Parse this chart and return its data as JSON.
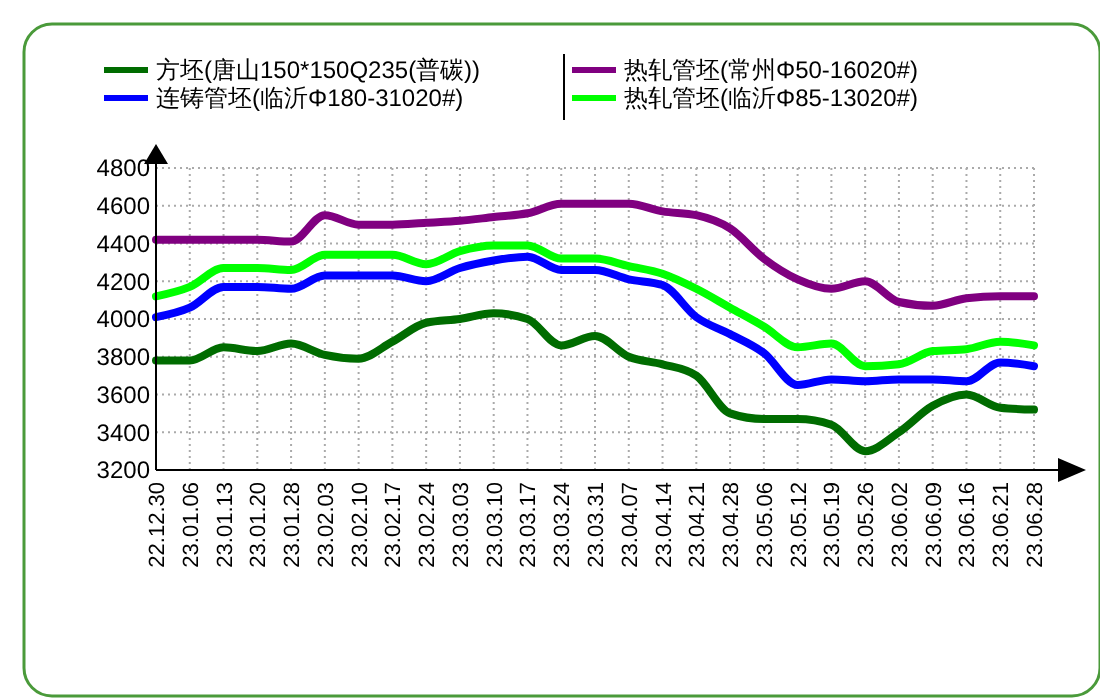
{
  "chart_data": {
    "type": "line",
    "categories": [
      "22.12.30",
      "23.01.06",
      "23.01.13",
      "23.01.20",
      "23.01.28",
      "23.02.03",
      "23.02.10",
      "23.02.17",
      "23.02.24",
      "23.03.03",
      "23.03.10",
      "23.03.17",
      "23.03.24",
      "23.03.31",
      "23.04.07",
      "23.04.14",
      "23.04.21",
      "23.04.28",
      "23.05.06",
      "23.05.12",
      "23.05.19",
      "23.05.26",
      "23.06.02",
      "23.06.09",
      "23.06.16",
      "23.06.21",
      "23.06.28"
    ],
    "series": [
      {
        "name": "方坯(唐山150*150Q235(普碳))",
        "color": "#006c00",
        "values": [
          3780,
          3780,
          3850,
          3830,
          3870,
          3810,
          3790,
          3880,
          3980,
          4000,
          4030,
          4000,
          3860,
          3910,
          3800,
          3760,
          3700,
          3500,
          3470,
          3470,
          3440,
          3300,
          3400,
          3540,
          3600,
          3530,
          3520
        ]
      },
      {
        "name": "连铸管坯(临沂Φ180-31020#)",
        "color": "#0000ff",
        "values": [
          4010,
          4060,
          4170,
          4170,
          4160,
          4230,
          4230,
          4230,
          4200,
          4270,
          4310,
          4330,
          4260,
          4260,
          4210,
          4180,
          4010,
          3920,
          3820,
          3650,
          3680,
          3670,
          3680,
          3680,
          3670,
          3770,
          3750
        ]
      },
      {
        "name": "热轧管坯(常州Φ50-16020#)",
        "color": "#800080",
        "values": [
          4420,
          4420,
          4420,
          4420,
          4410,
          4550,
          4500,
          4500,
          4510,
          4520,
          4540,
          4560,
          4610,
          4610,
          4610,
          4570,
          4550,
          4480,
          4320,
          4210,
          4160,
          4200,
          4090,
          4070,
          4110,
          4120,
          4120
        ]
      },
      {
        "name": "热轧管坯(临沂Φ85-13020#)",
        "color": "#00ff00",
        "values": [
          4120,
          4170,
          4270,
          4270,
          4260,
          4340,
          4340,
          4340,
          4290,
          4360,
          4390,
          4390,
          4320,
          4320,
          4280,
          4240,
          4160,
          4060,
          3960,
          3850,
          3870,
          3750,
          3760,
          3830,
          3840,
          3880,
          3860
        ]
      }
    ],
    "ylim": [
      3200,
      4800
    ],
    "yticks": [
      3200,
      3400,
      3600,
      3800,
      4000,
      4200,
      4400,
      4600,
      4800
    ],
    "grid": true,
    "legend": "top",
    "marker": "none",
    "line_style": "solid"
  }
}
